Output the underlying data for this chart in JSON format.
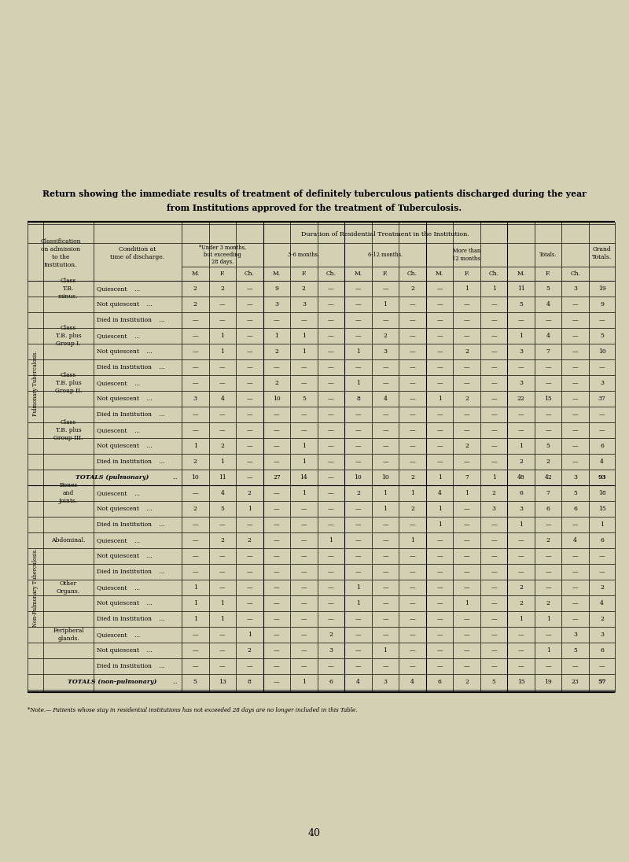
{
  "bg_color": "#d4d0b4",
  "title_line1": "Return showing the immediate results of treatment of definitely tuberculous patients discharged during the year",
  "title_line2": "from Institutions approved for the treatment of Tuberculosis.",
  "note": "*Note.— Patients whose stay in residential institutions has not exceeded 28 days are no longer included in this Table.",
  "page_number": "40",
  "period_labels": [
    "*Under 3 months,\nbut exceeding\n28 days.",
    "3-6 months.",
    "6-12 months.",
    "More than\n12 months.",
    "Totals."
  ],
  "mfc_labels": [
    "M.",
    "F.",
    "Ch.",
    "M.",
    "F.",
    "Ch.",
    "M.",
    "F.",
    "Ch.",
    "M.",
    "F.",
    "Ch.",
    "M.",
    "F.",
    "Ch."
  ],
  "pulmonary_label": "Pulmonary Tuberculosis.",
  "non_pulmonary_label": "Non-Pulmonary Tuberculosis.",
  "rows": [
    {
      "section": "Class\nT.B.\nminus.",
      "condition": "Quiescent    ...",
      "dots": true,
      "data": [
        "2",
        "2",
        "—",
        "9",
        "2",
        "—",
        "—",
        "—",
        "2",
        "—",
        "1",
        "1",
        "11",
        "5",
        "3"
      ],
      "grand": "19"
    },
    {
      "section": "",
      "condition": "Not quiescent    ...",
      "dots": true,
      "data": [
        "2",
        "—",
        "—",
        "3",
        "3",
        "—",
        "—",
        "1",
        "—",
        "—",
        "—",
        "—",
        "5",
        "4",
        "—"
      ],
      "grand": "9"
    },
    {
      "section": "",
      "condition": "Died in Institution    ...",
      "dots": true,
      "data": [
        "—",
        "—",
        "—",
        "—",
        "—",
        "—",
        "—",
        "—",
        "—",
        "—",
        "—",
        "—",
        "—",
        "—",
        "—"
      ],
      "grand": "—"
    },
    {
      "section": "Class\nT.B. plus\nGroup I.",
      "condition": "Quiescent    ...",
      "dots": true,
      "data": [
        "—",
        "1",
        "—",
        "1",
        "1",
        "—",
        "—",
        "2",
        "—",
        "—",
        "—",
        "—",
        "1",
        "4",
        "—"
      ],
      "grand": "5"
    },
    {
      "section": "",
      "condition": "Not quiescent    ...",
      "dots": true,
      "data": [
        "—",
        "1",
        "—",
        "2",
        "1",
        "—",
        "1",
        "3",
        "—",
        "—",
        "2",
        "—",
        "3",
        "7",
        "—"
      ],
      "grand": "10"
    },
    {
      "section": "",
      "condition": "Died in Institution    ...",
      "dots": true,
      "data": [
        "—",
        "—",
        "—",
        "—",
        "—",
        "—",
        "—",
        "—",
        "—",
        "—",
        "—",
        "—",
        "—",
        "—",
        "—"
      ],
      "grand": "—"
    },
    {
      "section": "Class\nT.B. plus\nGroup II.",
      "condition": "Quiescent    ...",
      "dots": true,
      "data": [
        "—",
        "—",
        "—",
        "2",
        "—",
        "—",
        "1",
        "—",
        "—",
        "—",
        "—",
        "—",
        "3",
        "—",
        "—"
      ],
      "grand": "3"
    },
    {
      "section": "",
      "condition": "Not quiescent    ...",
      "dots": true,
      "data": [
        "3",
        "4",
        "—",
        "10",
        "5",
        "—",
        "8",
        "4",
        "—",
        "1",
        "2",
        "—",
        "22",
        "15",
        "—"
      ],
      "grand": "37"
    },
    {
      "section": "",
      "condition": "Died in Institution    ...",
      "dots": true,
      "data": [
        "—",
        "—",
        "—",
        "—",
        "—",
        "—",
        "—",
        "—",
        "—",
        "—",
        "—",
        "—",
        "—",
        "—",
        "—"
      ],
      "grand": "—"
    },
    {
      "section": "Class\nT.B. plus\nGroup III.",
      "condition": "Quiescent    ...",
      "dots": true,
      "data": [
        "—",
        "—",
        "—",
        "—",
        "—",
        "—",
        "—",
        "—",
        "—",
        "—",
        "—",
        "—",
        "—",
        "—",
        "—"
      ],
      "grand": "—"
    },
    {
      "section": "",
      "condition": "Not quiescent    ...",
      "dots": true,
      "data": [
        "1",
        "2",
        "—",
        "—",
        "1",
        "—",
        "—",
        "—",
        "—",
        "—",
        "2",
        "—",
        "1",
        "5",
        "—"
      ],
      "grand": "6"
    },
    {
      "section": "",
      "condition": "Died in Institution    ...",
      "dots": true,
      "data": [
        "2",
        "1",
        "—",
        "—",
        "1",
        "—",
        "—",
        "—",
        "—",
        "—",
        "—",
        "—",
        "2",
        "2",
        "—"
      ],
      "grand": "4"
    },
    {
      "section": "TOTALS (pulmonary)",
      "condition": "",
      "data": [
        "10",
        "11",
        "—",
        "27",
        "14",
        "—",
        "10",
        "10",
        "2",
        "1",
        "7",
        "1",
        "48",
        "42",
        "3"
      ],
      "grand": "93",
      "is_total": true
    },
    {
      "section": "Bones\nand\nJoints.",
      "condition": "Quiescent    ...",
      "dots": true,
      "data": [
        "—",
        "4",
        "2",
        "—",
        "1",
        "—",
        "2",
        "1",
        "1",
        "4",
        "1",
        "2",
        "6",
        "7",
        "5"
      ],
      "grand": "18"
    },
    {
      "section": "",
      "condition": "Not quiescent    ...",
      "dots": true,
      "data": [
        "2",
        "5",
        "1",
        "—",
        "—",
        "—",
        "—",
        "1",
        "2",
        "1",
        "—",
        "3",
        "3",
        "6",
        "6"
      ],
      "grand": "15"
    },
    {
      "section": "",
      "condition": "Died in Institution    ...",
      "dots": true,
      "data": [
        "—",
        "—",
        "—",
        "—",
        "—",
        "—",
        "—",
        "—",
        "—",
        "1",
        "—",
        "—",
        "1",
        "—",
        "—"
      ],
      "grand": "1"
    },
    {
      "section": "Abdominal.",
      "condition": "Quiescent    ...",
      "dots": true,
      "data": [
        "—",
        "2",
        "2",
        "—",
        "—",
        "1",
        "—",
        "—",
        "1",
        "—",
        "—",
        "—",
        "—",
        "2",
        "4"
      ],
      "grand": "6"
    },
    {
      "section": "",
      "condition": "Not quiescent    ...",
      "dots": true,
      "data": [
        "—",
        "—",
        "—",
        "—",
        "—",
        "—",
        "—",
        "—",
        "—",
        "—",
        "—",
        "—",
        "—",
        "—",
        "—"
      ],
      "grand": "—"
    },
    {
      "section": "",
      "condition": "Died in Institution    ...",
      "dots": true,
      "data": [
        "—",
        "—",
        "—",
        "—",
        "—",
        "—",
        "—",
        "—",
        "—",
        "—",
        "—",
        "—",
        "—",
        "—",
        "—"
      ],
      "grand": "—"
    },
    {
      "section": "Other\nOrgans.",
      "condition": "Quiescent    ...",
      "dots": true,
      "data": [
        "1",
        "—",
        "—",
        "—",
        "—",
        "—",
        "1",
        "—",
        "—",
        "—",
        "—",
        "—",
        "2",
        "—",
        "—"
      ],
      "grand": "2"
    },
    {
      "section": "",
      "condition": "Not quiescent    ...",
      "dots": true,
      "data": [
        "1",
        "1",
        "—",
        "—",
        "—",
        "—",
        "1",
        "—",
        "—",
        "—",
        "1",
        "—",
        "2",
        "2",
        "—"
      ],
      "grand": "4"
    },
    {
      "section": "",
      "condition": "Died in Institution    ...",
      "dots": true,
      "data": [
        "1",
        "1",
        "—",
        "—",
        "—",
        "—",
        "—",
        "—",
        "—",
        "—",
        "—",
        "—",
        "1",
        "1",
        "—"
      ],
      "grand": "2"
    },
    {
      "section": "Peripheral\nglands.",
      "condition": "Quiescent    ...",
      "dots": true,
      "data": [
        "—",
        "—",
        "1",
        "—",
        "—",
        "2",
        "—",
        "—",
        "—",
        "—",
        "—",
        "—",
        "—",
        "—",
        "3"
      ],
      "grand": "3"
    },
    {
      "section": "",
      "condition": "Not quiescent    ...",
      "dots": true,
      "data": [
        "—",
        "—",
        "2",
        "—",
        "—",
        "3",
        "—",
        "1",
        "—",
        "—",
        "—",
        "—",
        "—",
        "1",
        "5"
      ],
      "grand": "6"
    },
    {
      "section": "",
      "condition": "Died in Institution    ...",
      "dots": true,
      "data": [
        "—",
        "—",
        "—",
        "—",
        "—",
        "—",
        "—",
        "—",
        "—",
        "—",
        "—",
        "—",
        "—",
        "—",
        "—"
      ],
      "grand": "—"
    },
    {
      "section": "TOTALS (non-pulmonary)",
      "condition": "",
      "data": [
        "5",
        "13",
        "8",
        "—",
        "1",
        "6",
        "4",
        "3",
        "4",
        "6",
        "2",
        "5",
        "15",
        "19",
        "23"
      ],
      "grand": "57",
      "is_total": true
    }
  ]
}
